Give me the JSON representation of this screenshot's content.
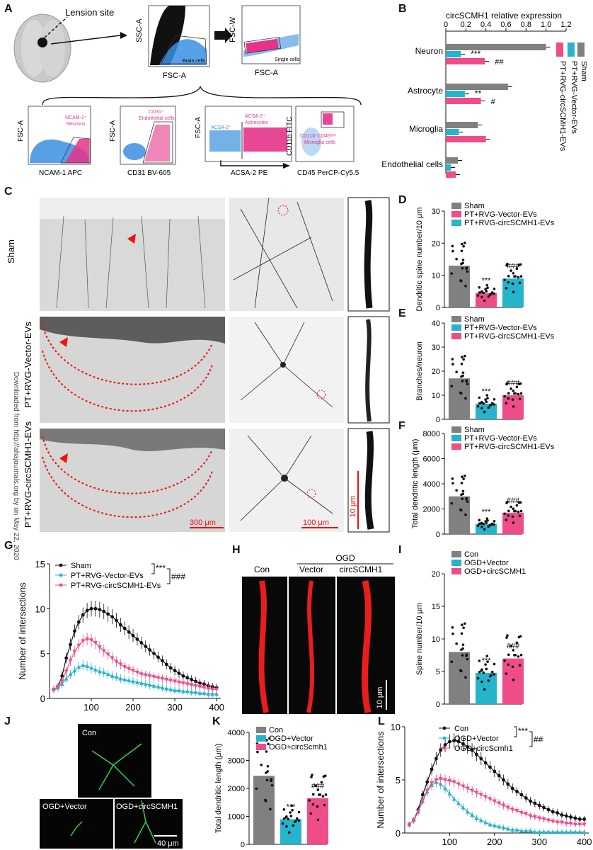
{
  "panel_letters": [
    "A",
    "B",
    "C",
    "D",
    "E",
    "F",
    "G",
    "H",
    "I",
    "J",
    "K",
    "L"
  ],
  "colors": {
    "sham": "#808080",
    "vector": "#26b3cc",
    "circ": "#ee4d8a",
    "flow_blue": "#3b8fe0",
    "flow_pink": "#e6338a",
    "dendrite_red": "#e81e1e",
    "neuron_green": "#31d14d",
    "scalebar_red": "#e11"
  },
  "panelA": {
    "lesion_label": "Lension site",
    "plots": [
      {
        "x_axis": "FSC-A",
        "y_axis": "SSC-A",
        "gate": "Brain cells"
      },
      {
        "x_axis": "FSC-A",
        "y_axis": "FSC-W",
        "gate": "Single cells"
      },
      {
        "x_axis": "NCAM-1 APC",
        "y_axis": "FSC-A",
        "gate_lines": [
          "NCAM-1⁺",
          "Neurons"
        ]
      },
      {
        "x_axis": "CD31 BV-605",
        "y_axis": "FSC-A",
        "gate_lines": [
          "CD31⁺",
          "Endothelial cells"
        ]
      },
      {
        "x_axis": "ACSA-2 PE",
        "y_axis": "FSC-A",
        "gate_neg": "ACSA-2⁻",
        "gate_lines": [
          "ACSA-2⁺",
          "Astrocytes"
        ]
      },
      {
        "x_axis": "CD45 PerCP-Cy5.5",
        "y_axis": "CD11b FITC",
        "gate_lines": [
          "CD11b⁺CD45ᵈⁱᵐ",
          "Microglia cells"
        ]
      }
    ]
  },
  "panelB": {
    "title": "circSCMH1 relative expression",
    "ticks": [
      "0",
      "0.2",
      "0.4",
      "0.6",
      "0.8",
      "1.0",
      "1.2"
    ],
    "legend": [
      "Sham",
      "PT+RVG-Vector-EVs",
      "PT+RVG-circSCMH1-EVs"
    ],
    "chart_data": {
      "type": "bar",
      "orientation": "horizontal",
      "categories": [
        "Neuron",
        "Astrocyte",
        "Microglia",
        "Endothelial cells"
      ],
      "series": [
        {
          "name": "Sham",
          "values": [
            1.0,
            0.62,
            0.32,
            0.12
          ]
        },
        {
          "name": "PT+RVG-Vector-EVs",
          "values": [
            0.15,
            0.19,
            0.13,
            0.05
          ]
        },
        {
          "name": "PT+RVG-circSCMH1-EVs",
          "values": [
            0.39,
            0.35,
            0.4,
            0.1
          ]
        }
      ],
      "xlim": [
        0,
        1.2
      ],
      "annotations": {
        "Neuron": [
          "***",
          "##"
        ],
        "Astrocyte": [
          "**",
          "#"
        ]
      }
    }
  },
  "panelC": {
    "row_labels": [
      "Sham",
      "PT+RVG-Vector-EVs",
      "PT+RVG-circSCMH1-EVs"
    ],
    "scale_labels": [
      "300 μm",
      "100 μm",
      "10 μm"
    ],
    "watermark": "Downloaded from http://ahajournals.org by on May 22, 2020"
  },
  "panelD": {
    "ylabel": "Dendritic spine number/10 μm",
    "legend": [
      "Sham",
      "PT+RVG-Vector-EVs",
      "PT+RVG-circSCMH1-EVs"
    ],
    "y_ticks": [
      "0",
      "10",
      "20",
      "30"
    ],
    "chart_data": {
      "type": "bar",
      "categories": [
        "Sham",
        "PT+RVG-Vector-EVs",
        "PT+RVG-circSCMH1-EVs"
      ],
      "values": [
        13,
        4.5,
        9
      ],
      "ylim": [
        0,
        30
      ],
      "sig": [
        "",
        "***",
        "###"
      ]
    }
  },
  "panelE": {
    "ylabel": "Branches/neuron",
    "legend": [
      "Sham",
      "PT+RVG-Vector-EVs",
      "PT+RVG-circSCMH1-EVs"
    ],
    "y_ticks": [
      "0",
      "10",
      "20",
      "30",
      "40"
    ],
    "chart_data": {
      "type": "bar",
      "categories": [
        "Sham",
        "PT+RVG-Vector-EVs",
        "PT+RVG-circSCMH1-EVs"
      ],
      "values": [
        17,
        6.5,
        10
      ],
      "ylim": [
        0,
        40
      ],
      "sig": [
        "",
        "***",
        "###"
      ]
    }
  },
  "panelF": {
    "ylabel": "Total dendritic length (μm)",
    "legend": [
      "Sham",
      "PT+RVG-Vector-EVs",
      "PT+RVG-circSCMH1-EVs"
    ],
    "y_ticks": [
      "0",
      "2000",
      "4000",
      "6000",
      "8000"
    ],
    "chart_data": {
      "type": "bar",
      "categories": [
        "Sham",
        "PT+RVG-Vector-EVs",
        "PT+RVG-circSCMH1-EVs"
      ],
      "values": [
        3000,
        800,
        1700
      ],
      "ylim": [
        0,
        8000
      ],
      "sig": [
        "",
        "***",
        "###"
      ]
    }
  },
  "panelG": {
    "ylabel": "Number of intersections",
    "legend": [
      "Sham",
      "PT+RVG-Vector-EVs",
      "PT+RVG-circSCMH1-EVs"
    ],
    "sig": [
      "***",
      "###"
    ],
    "x_ticks": [
      "100",
      "200",
      "300",
      "400"
    ],
    "y_ticks": [
      "0",
      "5",
      "10",
      "15"
    ],
    "chart_data": {
      "type": "line",
      "x": [
        10,
        20,
        30,
        40,
        50,
        60,
        70,
        80,
        90,
        100,
        110,
        120,
        130,
        140,
        150,
        160,
        170,
        180,
        190,
        200,
        210,
        220,
        230,
        240,
        250,
        260,
        270,
        280,
        290,
        300,
        310,
        320,
        330,
        340,
        350,
        360,
        370,
        380,
        390,
        400
      ],
      "series": [
        {
          "name": "Sham",
          "values": [
            1.0,
            1.3,
            2.5,
            4.5,
            6.0,
            7.5,
            8.5,
            9.3,
            9.8,
            10.0,
            10.0,
            9.9,
            9.7,
            9.4,
            9.1,
            8.7,
            8.2,
            7.8,
            7.4,
            7.0,
            6.6,
            6.2,
            5.8,
            5.4,
            5.0,
            4.6,
            4.2,
            3.8,
            3.4,
            3.1,
            2.8,
            2.5,
            2.3,
            2.1,
            1.9,
            1.7,
            1.6,
            1.4,
            1.3,
            1.2
          ]
        },
        {
          "name": "PT+RVG-Vector-EVs",
          "values": [
            1.0,
            1.2,
            1.6,
            2.2,
            2.7,
            3.1,
            3.5,
            3.7,
            3.6,
            3.4,
            3.2,
            3.0,
            2.9,
            2.7,
            2.5,
            2.4,
            2.2,
            2.1,
            2.0,
            1.9,
            1.8,
            1.7,
            1.6,
            1.5,
            1.4,
            1.3,
            1.2,
            1.1,
            1.0,
            0.9,
            0.9,
            0.8,
            0.8,
            0.7,
            0.7,
            0.6,
            0.6,
            0.5,
            0.5,
            0.5
          ]
        },
        {
          "name": "PT+RVG-circSCMH1-EVs",
          "values": [
            1.0,
            1.3,
            1.9,
            3.0,
            4.2,
            5.2,
            5.9,
            6.4,
            6.6,
            6.5,
            6.2,
            5.7,
            5.3,
            4.9,
            4.5,
            4.1,
            3.8,
            3.5,
            3.3,
            3.1,
            2.9,
            2.7,
            2.6,
            2.5,
            2.4,
            2.3,
            2.2,
            2.1,
            2.0,
            1.9,
            1.8,
            1.7,
            1.6,
            1.5,
            1.4,
            1.3,
            1.2,
            1.1,
            1.0,
            1.0
          ]
        }
      ],
      "xlim": [
        0,
        410
      ],
      "ylim": [
        0,
        15
      ]
    }
  },
  "panelH": {
    "header": "OGD",
    "columns": [
      "Con",
      "Vector",
      "circSCMH1"
    ],
    "scale": "10 μm"
  },
  "panelI": {
    "ylabel": "Spine number/10 μm",
    "legend": [
      "Con",
      "OGD+Vector",
      "OGD+circSCMH1"
    ],
    "y_ticks": [
      "0",
      "5",
      "10",
      "15",
      "20"
    ],
    "chart_data": {
      "type": "bar",
      "categories": [
        "Con",
        "OGD+Vector",
        "OGD+circSCMH1"
      ],
      "values": [
        8,
        4.8,
        7
      ],
      "ylim": [
        0,
        20
      ],
      "sig": [
        "",
        "***",
        "###"
      ]
    }
  },
  "panelJ": {
    "labels": [
      "Con",
      "OGD+Vector",
      "OGD+circSCMH1"
    ],
    "scale": "40 μm"
  },
  "panelK": {
    "ylabel": "Total dendritic length (μm)",
    "legend": [
      "Con",
      "OGD+Vector",
      "OGD+circScmh1"
    ],
    "y_ticks": [
      "0",
      "1000",
      "2000",
      "3000",
      "4000"
    ],
    "chart_data": {
      "type": "bar",
      "categories": [
        "Con",
        "OGD+Vector",
        "OGD+circScmh1"
      ],
      "values": [
        2450,
        900,
        1650
      ],
      "ylim": [
        0,
        4000
      ],
      "sig": [
        "",
        "***",
        "###"
      ]
    }
  },
  "panelL": {
    "ylabel": "Number of intersections",
    "legend": [
      "Con",
      "OGD+Vector",
      "OGD+circScmh1"
    ],
    "sig": [
      "***",
      "##"
    ],
    "x_ticks": [
      "100",
      "200",
      "300",
      "400"
    ],
    "y_ticks": [
      "0",
      "5",
      "10"
    ],
    "chart_data": {
      "type": "line",
      "x": [
        10,
        20,
        30,
        40,
        50,
        60,
        70,
        80,
        90,
        100,
        110,
        120,
        130,
        140,
        150,
        160,
        170,
        180,
        190,
        200,
        210,
        220,
        230,
        240,
        250,
        260,
        270,
        280,
        290,
        300,
        310,
        320,
        330,
        340,
        350,
        360,
        370,
        380,
        390,
        400
      ],
      "series": [
        {
          "name": "Con",
          "values": [
            0.8,
            1.2,
            2.2,
            3.6,
            4.8,
            6.0,
            7.0,
            7.8,
            8.3,
            8.6,
            8.7,
            8.6,
            8.4,
            8.1,
            7.8,
            7.4,
            7.0,
            6.6,
            6.2,
            5.8,
            5.4,
            5.0,
            4.6,
            4.2,
            3.9,
            3.6,
            3.3,
            3.0,
            2.8,
            2.6,
            2.4,
            2.2,
            2.0,
            1.9,
            1.7,
            1.6,
            1.5,
            1.4,
            1.3,
            1.3
          ]
        },
        {
          "name": "OGD+Vector",
          "values": [
            0.8,
            1.2,
            2.0,
            3.0,
            3.9,
            4.5,
            4.8,
            4.6,
            4.2,
            3.7,
            3.2,
            2.8,
            2.4,
            2.0,
            1.7,
            1.4,
            1.2,
            1.0,
            0.8,
            0.7,
            0.6,
            0.5,
            0.4,
            0.3,
            0.3,
            0.2,
            0.2,
            0.2,
            0.1,
            0.1,
            0.1,
            0.1,
            0.1,
            0.1,
            0.1,
            0.1,
            0.1,
            0.1,
            0.1,
            0.1
          ]
        },
        {
          "name": "OGD+circScmh1",
          "values": [
            0.8,
            1.2,
            2.0,
            3.1,
            4.0,
            4.7,
            5.0,
            5.1,
            5.0,
            4.9,
            4.8,
            4.6,
            4.4,
            4.2,
            4.0,
            3.8,
            3.6,
            3.4,
            3.2,
            3.0,
            2.8,
            2.6,
            2.4,
            2.2,
            2.1,
            1.9,
            1.8,
            1.6,
            1.5,
            1.4,
            1.3,
            1.2,
            1.1,
            1.0,
            1.0,
            0.9,
            0.9,
            0.8,
            0.8,
            0.8
          ]
        }
      ],
      "xlim": [
        0,
        410
      ],
      "ylim": [
        0,
        10
      ]
    }
  }
}
